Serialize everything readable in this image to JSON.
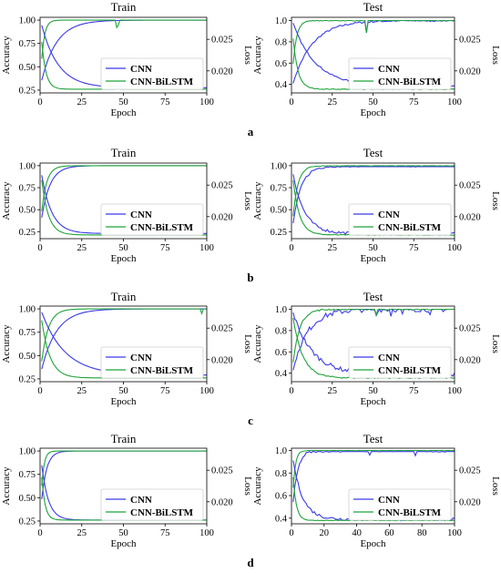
{
  "colors": {
    "cnn": "#3a3ae8",
    "bilstm": "#1fa33a",
    "axis": "#000000"
  },
  "chart_data": [
    {
      "type": "line",
      "row": "a",
      "panel": "train",
      "title": "Train",
      "xlabel": "Epoch",
      "ylabel": "Accuracy",
      "y2label": "Loss",
      "xlim": [
        0,
        100
      ],
      "ylim": [
        0.22,
        1.03
      ],
      "y2lim": [
        0.0165,
        0.0285
      ],
      "xticks": [
        "0",
        "25",
        "50",
        "75",
        "100"
      ],
      "yticks": [
        "0.25",
        "0.50",
        "0.75",
        "1.00"
      ],
      "y2ticks": [
        "0.020",
        "0.025"
      ],
      "legend": [
        "CNN",
        "CNN-BiLSTM"
      ],
      "legend_position": "lower-right",
      "grid": false
    },
    {
      "type": "line",
      "row": "a",
      "panel": "test",
      "title": "Test",
      "xlabel": "Epoch",
      "ylabel": "Accuracy",
      "y2label": "Loss",
      "xlim": [
        0,
        100
      ],
      "ylim": [
        0.32,
        1.03
      ],
      "y2lim": [
        0.0165,
        0.0285
      ],
      "xticks": [
        "0",
        "25",
        "50",
        "75",
        "100"
      ],
      "yticks": [
        "0.4",
        "0.6",
        "0.8",
        "1.0"
      ],
      "y2ticks": [
        "0.020",
        "0.025"
      ],
      "legend": [
        "CNN",
        "CNN-BiLSTM"
      ],
      "legend_position": "lower-right",
      "grid": false
    },
    {
      "type": "line",
      "row": "b",
      "panel": "train",
      "title": "Train",
      "xlabel": "Epoch",
      "ylabel": "Accuracy",
      "y2label": "Loss",
      "xlim": [
        0,
        100
      ],
      "ylim": [
        0.17,
        1.03
      ],
      "y2lim": [
        0.0165,
        0.0285
      ],
      "xticks": [
        "0",
        "25",
        "50",
        "75",
        "100"
      ],
      "yticks": [
        "0.25",
        "0.50",
        "0.75",
        "1.00"
      ],
      "y2ticks": [
        "0.020",
        "0.025"
      ],
      "legend": [
        "CNN",
        "CNN-BiLSTM"
      ],
      "legend_position": "lower-right",
      "grid": false
    },
    {
      "type": "line",
      "row": "b",
      "panel": "test",
      "title": "Test",
      "xlabel": "Epoch",
      "ylabel": "Accuracy",
      "y2label": "Loss",
      "xlim": [
        0,
        100
      ],
      "ylim": [
        0.17,
        1.03
      ],
      "y2lim": [
        0.0165,
        0.0285
      ],
      "xticks": [
        "0",
        "25",
        "50",
        "75",
        "100"
      ],
      "yticks": [
        "0.25",
        "0.50",
        "0.75",
        "1.00"
      ],
      "y2ticks": [
        "0.020",
        "0.025"
      ],
      "legend": [
        "CNN",
        "CNN-BiLSTM"
      ],
      "legend_position": "lower-right",
      "grid": false
    },
    {
      "type": "line",
      "row": "c",
      "panel": "train",
      "title": "Train",
      "xlabel": "Epoch",
      "ylabel": "Accuracy",
      "y2label": "Loss",
      "xlim": [
        0,
        100
      ],
      "ylim": [
        0.22,
        1.03
      ],
      "y2lim": [
        0.0165,
        0.0285
      ],
      "xticks": [
        "0",
        "25",
        "50",
        "75",
        "100"
      ],
      "yticks": [
        "0.25",
        "0.50",
        "0.75",
        "1.00"
      ],
      "y2ticks": [
        "0.020",
        "0.025"
      ],
      "legend": [
        "CNN",
        "CNN-BiLSTM"
      ],
      "legend_position": "lower-right",
      "grid": false
    },
    {
      "type": "line",
      "row": "c",
      "panel": "test",
      "title": "Test",
      "xlabel": "Epoch",
      "ylabel": "Accuracy",
      "y2label": "Loss",
      "xlim": [
        0,
        100
      ],
      "ylim": [
        0.32,
        1.03
      ],
      "y2lim": [
        0.0165,
        0.0285
      ],
      "xticks": [
        "0",
        "25",
        "50",
        "75",
        "100"
      ],
      "yticks": [
        "0.4",
        "0.6",
        "0.8",
        "1.0"
      ],
      "y2ticks": [
        "0.020",
        "0.025"
      ],
      "legend": [
        "CNN",
        "CNN-BiLSTM"
      ],
      "legend_position": "lower-right",
      "grid": false
    },
    {
      "type": "line",
      "row": "d",
      "panel": "train",
      "title": "Train",
      "xlabel": "Epoch",
      "ylabel": "Accuracy",
      "y2label": "Loss",
      "xlim": [
        0,
        100
      ],
      "ylim": [
        0.22,
        1.03
      ],
      "y2lim": [
        0.0165,
        0.0285
      ],
      "xticks": [
        "0",
        "25",
        "50",
        "75",
        "100"
      ],
      "yticks": [
        "0.25",
        "0.50",
        "0.75",
        "1.00"
      ],
      "y2ticks": [
        "0.020",
        "0.025"
      ],
      "legend": [
        "CNN",
        "CNN-BiLSTM"
      ],
      "legend_position": "lower-right",
      "grid": false
    },
    {
      "type": "line",
      "row": "d",
      "panel": "test",
      "title": "Test",
      "xlabel": "Epoch",
      "ylabel": "Accuracy",
      "y2label": "Loss",
      "xlim": [
        0,
        100
      ],
      "ylim": [
        0.35,
        1.02
      ],
      "y2lim": [
        0.0165,
        0.0285
      ],
      "xticks": [
        "0",
        "20",
        "40",
        "60",
        "80",
        "100"
      ],
      "yticks": [
        "0.4",
        "0.6",
        "0.8",
        "1.0"
      ],
      "y2ticks": [
        "0.020",
        "0.025"
      ],
      "legend": [
        "CNN",
        "CNN-BiLSTM"
      ],
      "legend_position": "lower-right",
      "grid": false
    }
  ],
  "row_labels": [
    "a",
    "b",
    "c",
    "d"
  ]
}
